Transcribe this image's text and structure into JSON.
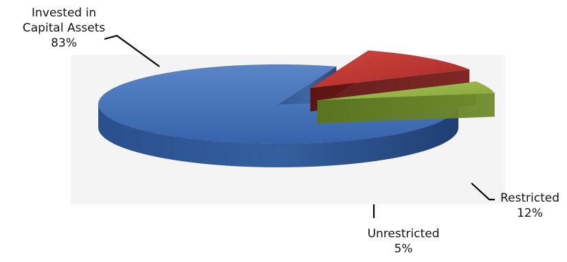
{
  "chart_data": {
    "type": "pie",
    "style": "3d-exploded",
    "title": "",
    "slices": [
      {
        "name_lines": [
          "Invested in",
          "Capital Assets"
        ],
        "value": 83,
        "value_label": "83%",
        "color": "#3f6db5"
      },
      {
        "name_lines": [
          "Restricted"
        ],
        "value": 12,
        "value_label": "12%",
        "color": "#b8332f"
      },
      {
        "name_lines": [
          "Unrestricted"
        ],
        "value": 5,
        "value_label": "5%",
        "color": "#8fae3b"
      }
    ],
    "legend": "none",
    "background": "#f4f4f4"
  }
}
